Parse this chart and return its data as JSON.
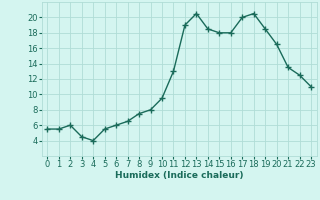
{
  "x": [
    0,
    1,
    2,
    3,
    4,
    5,
    6,
    7,
    8,
    9,
    10,
    11,
    12,
    13,
    14,
    15,
    16,
    17,
    18,
    19,
    20,
    21,
    22,
    23
  ],
  "y": [
    5.5,
    5.5,
    6.0,
    4.5,
    4.0,
    5.5,
    6.0,
    6.5,
    7.5,
    8.0,
    9.5,
    13.0,
    19.0,
    20.5,
    18.5,
    18.0,
    18.0,
    20.0,
    20.5,
    18.5,
    16.5,
    13.5,
    12.5,
    11.0
  ],
  "line_color": "#1a6b5a",
  "marker": "+",
  "markersize": 4,
  "linewidth": 1.0,
  "markeredgewidth": 1.0,
  "background_color": "#d4f5f0",
  "grid_color": "#b0ddd6",
  "xlabel": "Humidex (Indice chaleur)",
  "xlim": [
    -0.5,
    23.5
  ],
  "ylim": [
    2,
    22
  ],
  "yticks": [
    4,
    6,
    8,
    10,
    12,
    14,
    16,
    18,
    20
  ],
  "xticks": [
    0,
    1,
    2,
    3,
    4,
    5,
    6,
    7,
    8,
    9,
    10,
    11,
    12,
    13,
    14,
    15,
    16,
    17,
    18,
    19,
    20,
    21,
    22,
    23
  ],
  "xlabel_fontsize": 6.5,
  "tick_fontsize": 6.0
}
